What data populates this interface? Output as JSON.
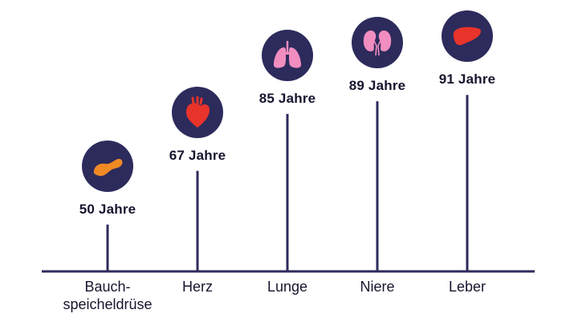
{
  "chart_data": {
    "type": "bar",
    "categories": [
      "Bauch-\nspeicheldrüse",
      "Herz",
      "Lunge",
      "Niere",
      "Leber"
    ],
    "values": [
      50,
      67,
      85,
      89,
      91
    ],
    "value_labels": [
      "50 Jahre",
      "67 Jahre",
      "85 Jahre",
      "89 Jahre",
      "91 Jahre"
    ],
    "icons": [
      "pancreas-icon",
      "heart-icon",
      "lungs-icon",
      "kidneys-icon",
      "liver-icon"
    ],
    "icon_colors": [
      "#f08a24",
      "#e8332a",
      "#f28dc0",
      "#f28dc0",
      "#e8332a"
    ],
    "circle_color": "#2d2b5c",
    "line_color": "#2d2b5c",
    "title": "",
    "xlabel": "",
    "ylabel": "",
    "grid": false
  }
}
